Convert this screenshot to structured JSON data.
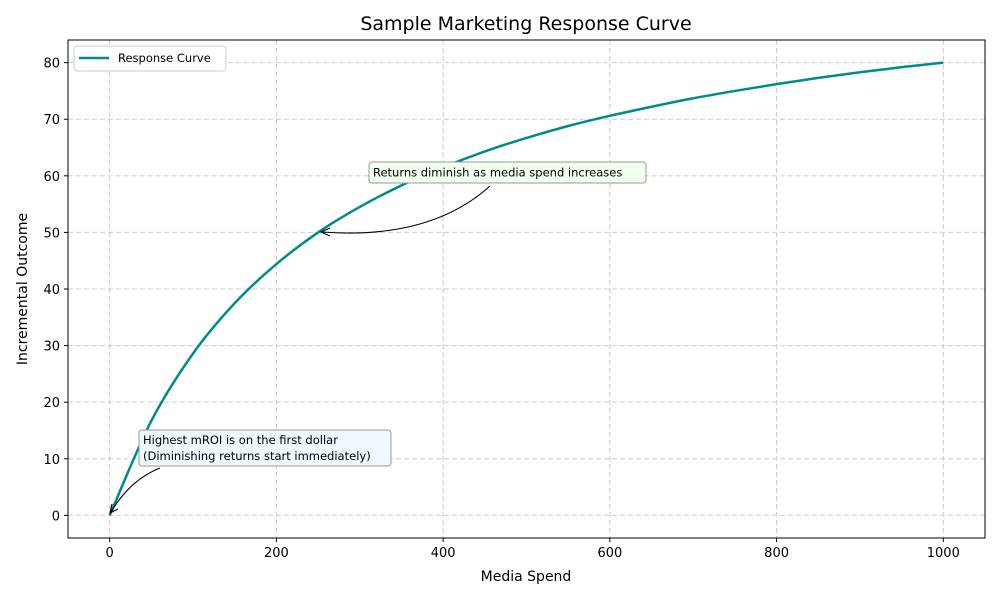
{
  "chart_data": {
    "type": "line",
    "title": "Sample Marketing Response Curve",
    "xlabel": "Media Spend",
    "ylabel": "Incremental Outcome",
    "xlim": [
      -50,
      1050
    ],
    "ylim": [
      -4,
      84
    ],
    "xticks": [
      0,
      200,
      400,
      600,
      800,
      1000
    ],
    "yticks": [
      0,
      10,
      20,
      30,
      40,
      50,
      60,
      70,
      80
    ],
    "grid": true,
    "legend_position": "top-left",
    "series": [
      {
        "name": "Response Curve",
        "color": "#008b8b",
        "x": [
          0,
          50,
          100,
          150,
          200,
          250,
          300,
          350,
          400,
          450,
          500,
          550,
          600,
          650,
          700,
          750,
          800,
          850,
          900,
          950,
          1000
        ],
        "y": [
          0,
          16.7,
          28.6,
          37.5,
          44.4,
          50,
          54.5,
          58.3,
          61.5,
          64.3,
          66.7,
          68.8,
          70.6,
          72.2,
          73.7,
          75,
          76.2,
          77.3,
          78.3,
          79.2,
          80
        ]
      }
    ],
    "annotations": [
      {
        "text": "Returns diminish as media spend increases",
        "xy": [
          250,
          50
        ],
        "xytext": [
          315,
          60
        ],
        "box_color": "#f0fff0"
      },
      {
        "text_lines": [
          "Highest mROI is on the first dollar",
          "(Diminishing returns start immediately)"
        ],
        "xy": [
          0,
          0
        ],
        "xytext": [
          40,
          12
        ],
        "box_color": "#f0f8ff"
      }
    ]
  }
}
